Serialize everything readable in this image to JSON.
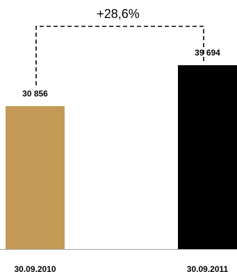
{
  "chart_data": {
    "type": "bar",
    "title": "",
    "xlabel": "",
    "ylabel": "",
    "categories": [
      "30.09.2010",
      "30.09.2011"
    ],
    "values": [
      30856,
      39694
    ],
    "value_labels": [
      "30 856",
      "39 694"
    ],
    "ylim": [
      0,
      39694
    ],
    "grid": false,
    "annotation": "+28,6%",
    "colors": [
      "#c39b56",
      "#000000"
    ]
  }
}
